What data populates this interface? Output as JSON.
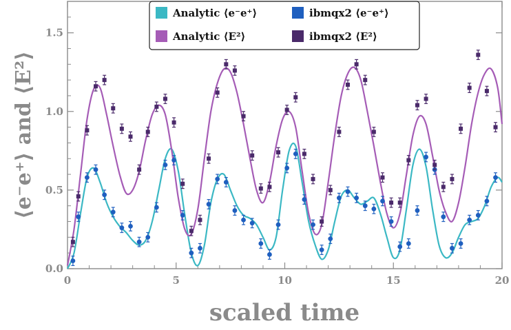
{
  "chart_data": {
    "type": "scatter",
    "xlabel": "scaled time",
    "ylabel": "⟨e⁻e⁺⟩ and ⟨E²⟩",
    "xlim": [
      0,
      20
    ],
    "ylim": [
      0,
      1.7
    ],
    "x_ticks": [
      0,
      5,
      10,
      15,
      20
    ],
    "x_tick_labels": [
      "0",
      "5",
      "10",
      "15",
      "20"
    ],
    "y_ticks": [
      0.0,
      0.5,
      1.0,
      1.5
    ],
    "y_tick_labels": [
      "0.0",
      "0.5",
      "1.0",
      "1.5"
    ],
    "grid": false,
    "legend_position": "top",
    "series": [
      {
        "name": "Analytic ⟨e⁻e⁺⟩",
        "kind": "line",
        "color": "#3bb8c4",
        "x": [
          0,
          0.3,
          0.6,
          0.9,
          1.2,
          1.5,
          1.8,
          2.1,
          2.4,
          2.7,
          3.0,
          3.3,
          3.6,
          3.9,
          4.2,
          4.5,
          4.8,
          5.1,
          5.4,
          5.7,
          6.0,
          6.3,
          6.6,
          6.9,
          7.2,
          7.5,
          7.8,
          8.1,
          8.4,
          8.7,
          9.0,
          9.3,
          9.6,
          9.9,
          10.2,
          10.5,
          10.8,
          11.1,
          11.4,
          11.7,
          12.0,
          12.3,
          12.6,
          12.9,
          13.2,
          13.5,
          13.8,
          14.1,
          14.4,
          14.7,
          15.0,
          15.3,
          15.6,
          15.9,
          16.2,
          16.5,
          16.8,
          17.1,
          17.4,
          17.7,
          18.0,
          18.3,
          18.6,
          18.9,
          19.2,
          19.5,
          19.8,
          20.0
        ],
        "values": [
          0.0,
          0.1,
          0.35,
          0.58,
          0.64,
          0.55,
          0.42,
          0.33,
          0.27,
          0.23,
          0.18,
          0.15,
          0.18,
          0.3,
          0.5,
          0.7,
          0.76,
          0.62,
          0.34,
          0.1,
          0.02,
          0.15,
          0.42,
          0.57,
          0.6,
          0.5,
          0.4,
          0.34,
          0.32,
          0.28,
          0.2,
          0.12,
          0.2,
          0.5,
          0.75,
          0.78,
          0.55,
          0.3,
          0.15,
          0.06,
          0.12,
          0.3,
          0.46,
          0.5,
          0.45,
          0.41,
          0.43,
          0.45,
          0.35,
          0.2,
          0.07,
          0.12,
          0.38,
          0.66,
          0.76,
          0.65,
          0.38,
          0.15,
          0.07,
          0.1,
          0.2,
          0.28,
          0.3,
          0.32,
          0.4,
          0.52,
          0.58,
          0.55
        ]
      },
      {
        "name": "Analytic ⟨E²⟩",
        "kind": "line",
        "color": "#a55cb6",
        "x": [
          0,
          0.3,
          0.6,
          0.9,
          1.2,
          1.5,
          1.8,
          2.1,
          2.4,
          2.7,
          3.0,
          3.3,
          3.6,
          3.9,
          4.2,
          4.5,
          4.8,
          5.1,
          5.4,
          5.7,
          6.0,
          6.3,
          6.6,
          6.9,
          7.2,
          7.5,
          7.8,
          8.1,
          8.4,
          8.7,
          9.0,
          9.3,
          9.6,
          9.9,
          10.2,
          10.5,
          10.8,
          11.1,
          11.4,
          11.7,
          12.0,
          12.3,
          12.6,
          12.9,
          13.2,
          13.5,
          13.8,
          14.1,
          14.4,
          14.7,
          15.0,
          15.3,
          15.6,
          15.9,
          16.2,
          16.5,
          16.8,
          17.1,
          17.4,
          17.7,
          18.0,
          18.3,
          18.6,
          18.9,
          19.2,
          19.5,
          19.8,
          20.0
        ],
        "values": [
          0.02,
          0.25,
          0.6,
          0.95,
          1.14,
          1.15,
          0.98,
          0.78,
          0.6,
          0.48,
          0.5,
          0.62,
          0.82,
          0.98,
          1.04,
          0.98,
          0.75,
          0.45,
          0.25,
          0.22,
          0.38,
          0.7,
          1.0,
          1.18,
          1.27,
          1.25,
          1.12,
          0.92,
          0.7,
          0.5,
          0.42,
          0.55,
          0.78,
          0.95,
          1.0,
          0.9,
          0.62,
          0.35,
          0.22,
          0.28,
          0.55,
          0.85,
          1.1,
          1.24,
          1.28,
          1.2,
          1.0,
          0.78,
          0.55,
          0.35,
          0.26,
          0.35,
          0.6,
          0.85,
          0.97,
          0.92,
          0.72,
          0.5,
          0.36,
          0.3,
          0.42,
          0.65,
          0.92,
          1.12,
          1.24,
          1.27,
          1.15,
          0.92
        ]
      },
      {
        "name": "ibmqx2 ⟨e⁻e⁺⟩",
        "kind": "points",
        "color": "#1f5fbf",
        "x": [
          0.25,
          0.5,
          0.9,
          1.3,
          1.7,
          2.1,
          2.5,
          2.9,
          3.3,
          3.7,
          4.1,
          4.5,
          4.9,
          5.3,
          5.7,
          6.1,
          6.5,
          6.9,
          7.3,
          7.7,
          8.1,
          8.5,
          8.9,
          9.3,
          9.7,
          10.1,
          10.5,
          10.9,
          11.3,
          11.7,
          12.1,
          12.5,
          12.9,
          13.3,
          13.7,
          14.1,
          14.5,
          14.9,
          15.3,
          15.7,
          16.1,
          16.5,
          16.9,
          17.3,
          17.7,
          18.1,
          18.5,
          18.9,
          19.3,
          19.7
        ],
        "values": [
          0.05,
          0.33,
          0.58,
          0.63,
          0.47,
          0.36,
          0.26,
          0.27,
          0.17,
          0.2,
          0.39,
          0.66,
          0.69,
          0.34,
          0.1,
          0.13,
          0.41,
          0.57,
          0.55,
          0.37,
          0.31,
          0.29,
          0.16,
          0.09,
          0.28,
          0.64,
          0.73,
          0.44,
          0.28,
          0.12,
          0.19,
          0.45,
          0.49,
          0.45,
          0.4,
          0.38,
          0.43,
          0.3,
          0.14,
          0.16,
          0.37,
          0.71,
          0.63,
          0.33,
          0.13,
          0.16,
          0.31,
          0.34,
          0.43,
          0.58
        ]
      },
      {
        "name": "ibmqx2 ⟨E²⟩",
        "kind": "points",
        "color": "#4a2a6a",
        "x": [
          0.25,
          0.5,
          0.9,
          1.3,
          1.7,
          2.1,
          2.5,
          2.9,
          3.3,
          3.7,
          4.1,
          4.5,
          4.9,
          5.3,
          5.7,
          6.1,
          6.5,
          6.9,
          7.3,
          7.7,
          8.1,
          8.5,
          8.9,
          9.3,
          9.7,
          10.1,
          10.5,
          10.9,
          11.3,
          11.7,
          12.1,
          12.5,
          12.9,
          13.3,
          13.7,
          14.1,
          14.5,
          14.9,
          15.3,
          15.7,
          16.1,
          16.5,
          16.9,
          17.3,
          17.7,
          18.1,
          18.5,
          18.9,
          19.3,
          19.7
        ],
        "values": [
          0.17,
          0.46,
          0.88,
          1.16,
          1.2,
          1.02,
          0.89,
          0.84,
          0.63,
          0.87,
          1.03,
          1.08,
          0.93,
          0.54,
          0.24,
          0.31,
          0.7,
          1.12,
          1.3,
          1.26,
          0.97,
          0.72,
          0.51,
          0.52,
          0.74,
          1.01,
          1.09,
          0.73,
          0.57,
          0.3,
          0.5,
          0.87,
          1.17,
          1.3,
          1.2,
          0.87,
          0.58,
          0.42,
          0.42,
          0.69,
          1.04,
          1.08,
          0.66,
          0.52,
          0.57,
          0.89,
          1.15,
          1.36,
          1.13,
          0.9
        ]
      }
    ],
    "error_bar": 0.03
  }
}
